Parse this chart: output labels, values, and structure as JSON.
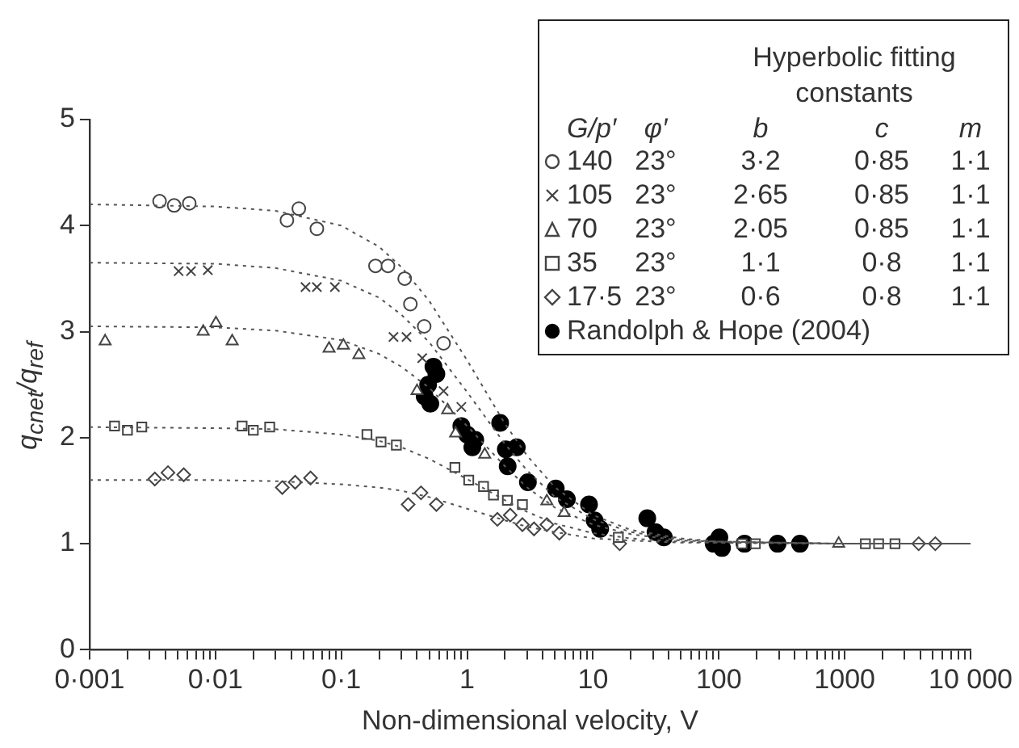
{
  "chart_data": {
    "type": "scatter",
    "xlabel": "Non-dimensional velocity, V",
    "ylabel": "q$_{cnet}$/q$_{ref}$",
    "legend_title": "Hyperbolic fitting constants",
    "legend": "top right",
    "log": "x",
    "grid": false,
    "xlim": [
      0.001,
      10000
    ],
    "ylim": [
      0,
      5
    ],
    "yticks": [
      0,
      1,
      2,
      3,
      4,
      5
    ],
    "xticks": [
      {
        "value": 0.001,
        "label": "0·001"
      },
      {
        "value": 0.002,
        "label": null
      },
      {
        "value": 0.003,
        "label": null
      },
      {
        "value": 0.004,
        "label": null
      },
      {
        "value": 0.005,
        "label": null
      },
      {
        "value": 0.006,
        "label": null
      },
      {
        "value": 0.007,
        "label": null
      },
      {
        "value": 0.008,
        "label": null
      },
      {
        "value": 0.009,
        "label": null
      },
      {
        "value": 0.01,
        "label": "0·01"
      },
      {
        "value": 0.02,
        "label": null
      },
      {
        "value": 0.03,
        "label": null
      },
      {
        "value": 0.04,
        "label": null
      },
      {
        "value": 0.05,
        "label": null
      },
      {
        "value": 0.06,
        "label": null
      },
      {
        "value": 0.07,
        "label": null
      },
      {
        "value": 0.08,
        "label": null
      },
      {
        "value": 0.09,
        "label": null
      },
      {
        "value": 0.1,
        "label": "0·1"
      },
      {
        "value": 0.2,
        "label": null
      },
      {
        "value": 0.3,
        "label": null
      },
      {
        "value": 0.4,
        "label": null
      },
      {
        "value": 0.5,
        "label": null
      },
      {
        "value": 0.6,
        "label": null
      },
      {
        "value": 0.7,
        "label": null
      },
      {
        "value": 0.8,
        "label": null
      },
      {
        "value": 0.9,
        "label": null
      },
      1,
      {
        "value": 2,
        "label": null
      },
      {
        "value": 3,
        "label": null
      },
      {
        "value": 4,
        "label": null
      },
      {
        "value": 5,
        "label": null
      },
      {
        "value": 6,
        "label": null
      },
      {
        "value": 7,
        "label": null
      },
      {
        "value": 8,
        "label": null
      },
      {
        "value": 9,
        "label": null
      },
      10,
      {
        "value": 20,
        "label": null
      },
      {
        "value": 30,
        "label": null
      },
      {
        "value": 40,
        "label": null
      },
      {
        "value": 50,
        "label": null
      },
      {
        "value": 60,
        "label": null
      },
      {
        "value": 70,
        "label": null
      },
      {
        "value": 80,
        "label": null
      },
      {
        "value": 90,
        "label": null
      },
      100,
      {
        "value": 200,
        "label": null
      },
      {
        "value": 300,
        "label": null
      },
      {
        "value": 400,
        "label": null
      },
      {
        "value": 500,
        "label": null
      },
      {
        "value": 600,
        "label": null
      },
      {
        "value": 700,
        "label": null
      },
      {
        "value": 800,
        "label": null
      },
      {
        "value": 900,
        "label": null
      },
      1000,
      {
        "value": 2000,
        "label": null
      },
      {
        "value": 3000,
        "label": null
      },
      {
        "value": 4000,
        "label": null
      },
      {
        "value": 5000,
        "label": null
      },
      {
        "value": 6000,
        "label": null
      },
      {
        "value": 7000,
        "label": null
      },
      {
        "value": 8000,
        "label": null
      },
      {
        "value": 9000,
        "label": null
      },
      {
        "value": 10000,
        "label": "10 000"
      }
    ],
    "annotations": [
      "G/p′",
      "φ′",
      "b",
      "c",
      "m",
      "23°",
      "3·2",
      "0·85",
      "1·1",
      "23°",
      "2·65",
      "0·85",
      "1·1",
      "23°",
      "2·05",
      "0·85",
      "1·1",
      "23°",
      "1·1",
      "0·8",
      "1·1",
      "23°",
      "0·6",
      "0·8",
      "1·1"
    ],
    "series": [
      {
        "type": "line",
        "color": "#555555",
        "line_style": "dotted",
        "marker": "none",
        "x": [
          0.001,
          0.01,
          0.03,
          0.1,
          0.2,
          0.3,
          0.5,
          1,
          2,
          3,
          5,
          10,
          20,
          50,
          100,
          1000,
          10000
        ],
        "values": [
          4.2,
          4.18,
          4.14,
          4.0,
          3.8,
          3.61,
          3.29,
          2.73,
          2.13,
          1.83,
          1.53,
          1.27,
          1.13,
          1.05,
          1.02,
          1.0,
          1.0
        ]
      },
      {
        "type": "line",
        "color": "#555555",
        "line_style": "dotted",
        "marker": "none",
        "x": [
          0.001,
          0.01,
          0.03,
          0.1,
          0.2,
          0.3,
          0.5,
          1,
          2,
          3,
          5,
          10,
          20,
          50,
          100,
          1000,
          10000
        ],
        "values": [
          3.65,
          3.64,
          3.6,
          3.48,
          3.32,
          3.16,
          2.9,
          2.43,
          1.94,
          1.69,
          1.44,
          1.23,
          1.11,
          1.04,
          1.02,
          1.0,
          1.0
        ]
      },
      {
        "type": "line",
        "color": "#555555",
        "line_style": "dotted",
        "marker": "none",
        "x": [
          0.001,
          0.01,
          0.03,
          0.1,
          0.2,
          0.3,
          0.5,
          1,
          2,
          3,
          5,
          10,
          20,
          50,
          100,
          1000,
          10000
        ],
        "values": [
          3.05,
          3.04,
          3.01,
          2.92,
          2.79,
          2.67,
          2.47,
          2.11,
          1.73,
          1.53,
          1.34,
          1.18,
          1.09,
          1.03,
          1.02,
          1.0,
          1.0
        ]
      },
      {
        "type": "line",
        "color": "#555555",
        "line_style": "dotted",
        "marker": "none",
        "x": [
          0.001,
          0.01,
          0.03,
          0.1,
          0.2,
          0.3,
          0.5,
          1,
          2,
          3,
          5,
          10,
          20,
          50,
          100,
          1000,
          10000
        ],
        "values": [
          2.1,
          2.09,
          2.08,
          2.03,
          1.97,
          1.91,
          1.8,
          1.61,
          1.41,
          1.3,
          1.19,
          1.1,
          1.05,
          1.02,
          1.01,
          1.0,
          1.0
        ]
      },
      {
        "type": "line",
        "color": "#555555",
        "line_style": "dotted",
        "marker": "none",
        "x": [
          0.001,
          0.01,
          0.03,
          0.1,
          0.2,
          0.3,
          0.5,
          1,
          2,
          3,
          5,
          10,
          20,
          50,
          100,
          1000,
          10000
        ],
        "values": [
          1.6,
          1.6,
          1.59,
          1.56,
          1.53,
          1.5,
          1.44,
          1.33,
          1.22,
          1.16,
          1.11,
          1.05,
          1.03,
          1.01,
          1.01,
          1.0,
          1.0
        ]
      },
      {
        "name": "140",
        "color": "#444444",
        "marker": "circle",
        "x": [
          0.0036,
          0.0047,
          0.0062,
          0.037,
          0.046,
          0.064,
          0.187,
          0.235,
          0.319,
          0.354,
          0.456,
          0.65
        ],
        "values": [
          4.23,
          4.19,
          4.21,
          4.05,
          4.16,
          3.97,
          3.62,
          3.62,
          3.5,
          3.26,
          3.05,
          2.89
        ]
      },
      {
        "name": "105",
        "color": "#444444",
        "marker": "cross",
        "x": [
          0.0051,
          0.0064,
          0.0087,
          0.052,
          0.064,
          0.089,
          0.26,
          0.33,
          0.44,
          0.65,
          0.9
        ],
        "values": [
          3.57,
          3.57,
          3.58,
          3.42,
          3.42,
          3.42,
          2.95,
          2.95,
          2.75,
          2.44,
          2.29
        ]
      },
      {
        "name": "70",
        "color": "#444444",
        "marker": "triangle",
        "x": [
          0.00133,
          0.008,
          0.0101,
          0.0136,
          0.08,
          0.104,
          0.138,
          0.4,
          0.7,
          0.81,
          1.38,
          4.3,
          5.9,
          896
        ],
        "values": [
          2.91,
          3.0,
          3.08,
          2.91,
          2.84,
          2.87,
          2.78,
          2.44,
          2.26,
          2.04,
          1.84,
          1.4,
          1.29,
          1.0
        ]
      },
      {
        "name": "35",
        "color": "#444444",
        "marker": "square",
        "x": [
          0.00158,
          0.002,
          0.0026,
          0.0163,
          0.02,
          0.027,
          0.16,
          0.207,
          0.274,
          0.8,
          1.03,
          1.35,
          1.62,
          2.09,
          2.75,
          15.9,
          153,
          195,
          1460,
          1860,
          2510
        ],
        "values": [
          2.11,
          2.07,
          2.1,
          2.11,
          2.07,
          2.1,
          2.03,
          1.96,
          1.93,
          1.72,
          1.6,
          1.54,
          1.46,
          1.41,
          1.37,
          1.06,
          1.0,
          1.0,
          1.0,
          1.0,
          1.0
        ]
      },
      {
        "name": "17·5",
        "color": "#444444",
        "marker": "diamond",
        "x": [
          0.0033,
          0.0042,
          0.0056,
          0.034,
          0.043,
          0.057,
          0.34,
          0.43,
          0.57,
          1.74,
          2.2,
          2.75,
          3.4,
          4.3,
          5.4,
          16.3,
          3870,
          5250
        ],
        "values": [
          1.61,
          1.67,
          1.65,
          1.53,
          1.58,
          1.62,
          1.37,
          1.48,
          1.37,
          1.23,
          1.27,
          1.18,
          1.14,
          1.18,
          1.1,
          1.0,
          1.0,
          1.0
        ]
      },
      {
        "name": "Randolph & Hope (2004)",
        "color": "#000000",
        "marker": "circle",
        "x": [
          0.54,
          0.57,
          0.49,
          0.46,
          0.51,
          0.9,
          1.0,
          1.16,
          1.1,
          1.83,
          2.03,
          2.48,
          2.1,
          3.04,
          5.06,
          6.2,
          9.3,
          10.3,
          11.4,
          27,
          31.4,
          36.6,
          101,
          106,
          91,
          160,
          293,
          441
        ],
        "values": [
          2.67,
          2.6,
          2.5,
          2.39,
          2.32,
          2.11,
          2.03,
          1.98,
          1.91,
          2.14,
          1.89,
          1.91,
          1.73,
          1.58,
          1.52,
          1.42,
          1.37,
          1.22,
          1.14,
          1.24,
          1.11,
          1.06,
          1.06,
          0.96,
          1.0,
          1.0,
          1.0,
          1.0
        ]
      }
    ]
  }
}
